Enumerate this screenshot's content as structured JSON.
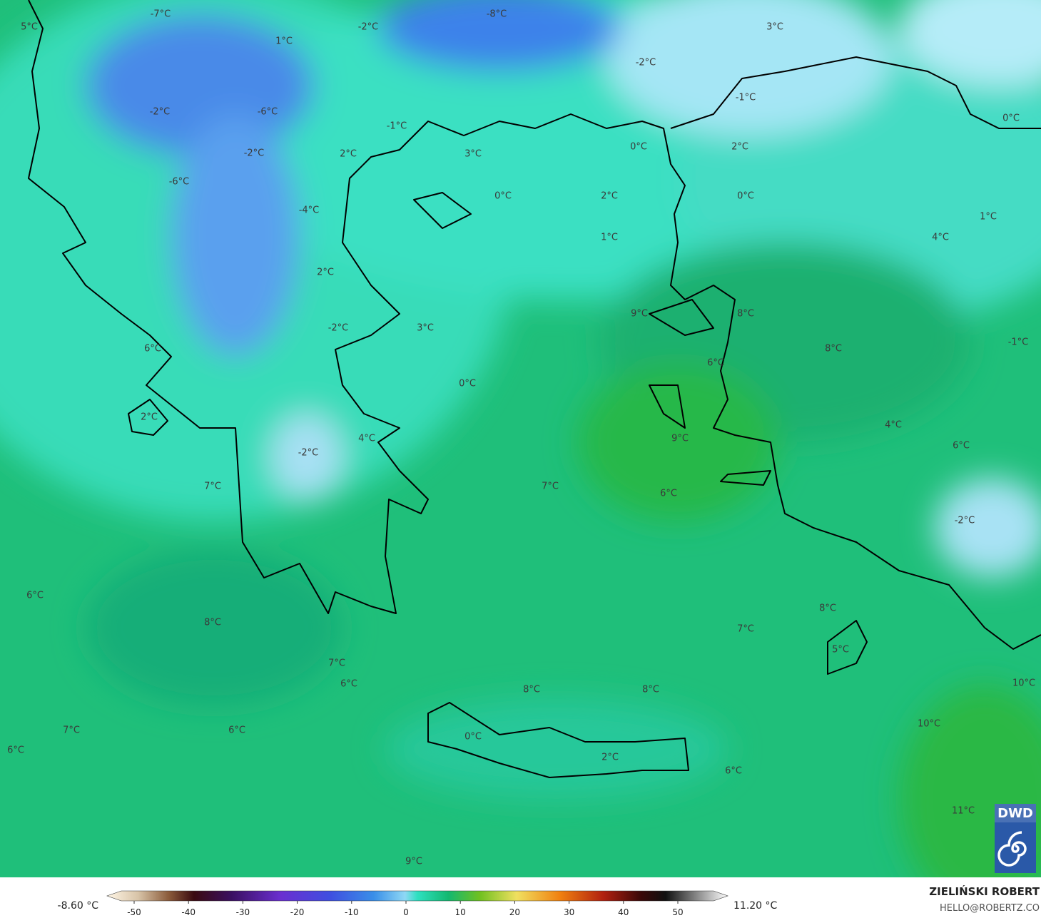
{
  "map": {
    "labels": [
      "5°C",
      "-7°C",
      "1°C",
      "-2°C",
      "-8°C",
      "3°C",
      "-2°C",
      "-1°C",
      "0°C",
      "-2°C",
      "-6°C",
      "-1°C",
      "3°C",
      "0°C",
      "2°C",
      "2°C",
      "-2°C",
      "-6°C",
      "0°C",
      "2°C",
      "0°C",
      "1°C",
      "4°C",
      "-4°C",
      "1°C",
      "2°C",
      "9°C",
      "8°C",
      "-2°C",
      "3°C",
      "8°C",
      "-1°C",
      "6°C",
      "6°C",
      "0°C",
      "2°C",
      "4°C",
      "9°C",
      "4°C",
      "-2°C",
      "6°C",
      "7°C",
      "7°C",
      "6°C",
      "-2°C",
      "6°C",
      "8°C",
      "8°C",
      "7°C",
      "5°C",
      "7°C",
      "6°C",
      "8°C",
      "8°C",
      "10°C",
      "10°C",
      "7°C",
      "6°C",
      "0°C",
      "2°C",
      "6°C",
      "6°C",
      "11°C",
      "9°C"
    ]
  },
  "colorbar": {
    "ticks": [
      -50,
      -40,
      -30,
      -20,
      -10,
      0,
      10,
      20,
      30,
      40,
      50
    ],
    "min_label": "-8.60 °C",
    "max_label": "11.20 °C"
  },
  "logo": "DWD",
  "credits": {
    "author": "ZIELIŃSKI ROBERT",
    "contact": "HELLO@ROBERTZ.CO"
  }
}
